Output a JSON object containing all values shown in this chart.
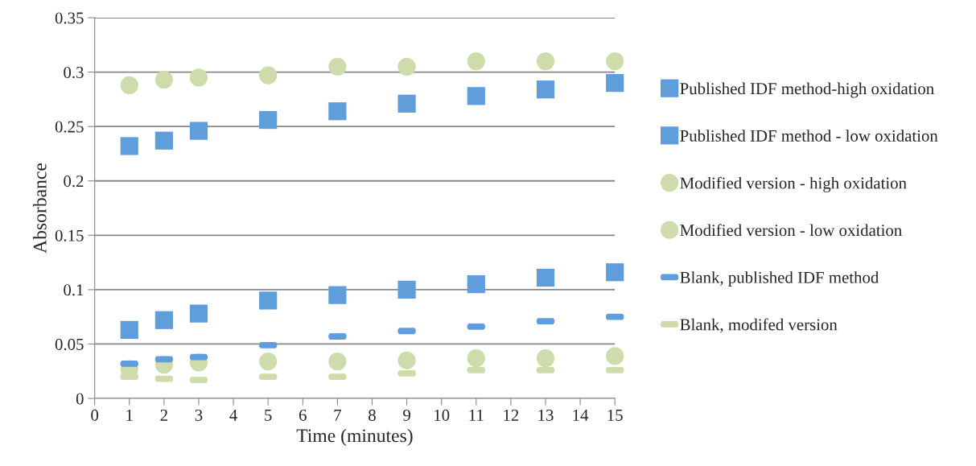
{
  "chart_data": {
    "type": "scatter",
    "xlabel": "Time (minutes)",
    "ylabel": "Absorbance",
    "x": [
      1,
      2,
      3,
      5,
      7,
      9,
      11,
      13,
      15
    ],
    "series": [
      {
        "name": "Published IDF method-high oxidation",
        "color": "#5f9ddb",
        "marker": "square",
        "values": [
          0.232,
          0.237,
          0.246,
          0.256,
          0.264,
          0.271,
          0.278,
          0.284,
          0.29
        ]
      },
      {
        "name": "Published IDF method - low oxidation",
        "color": "#5f9ddb",
        "marker": "square",
        "values": [
          0.063,
          0.072,
          0.078,
          0.09,
          0.095,
          0.1,
          0.105,
          0.111,
          0.116
        ]
      },
      {
        "name": "Modified version - high oxidation",
        "color": "#cddcaa",
        "marker": "circle",
        "values": [
          0.288,
          0.293,
          0.295,
          0.297,
          0.305,
          0.305,
          0.31,
          0.31,
          0.31
        ]
      },
      {
        "name": "Modified version - low oxidation",
        "color": "#cddcaa",
        "marker": "circle",
        "values": [
          0.027,
          0.031,
          0.033,
          0.034,
          0.034,
          0.035,
          0.037,
          0.037,
          0.039
        ]
      },
      {
        "name": "Blank, published IDF method",
        "color": "#5f9ddb",
        "values": [
          0.032,
          0.036,
          0.038,
          0.049,
          0.057,
          0.062,
          0.066,
          0.071,
          0.075
        ]
      },
      {
        "name": "Blank, modifed version",
        "color": "#cddcaa",
        "values": [
          0.02,
          0.018,
          0.017,
          0.02,
          0.02,
          0.023,
          0.026,
          0.026,
          0.026
        ]
      }
    ],
    "xlim": [
      0,
      15
    ],
    "xticks": [
      0,
      1,
      2,
      3,
      4,
      5,
      6,
      7,
      8,
      9,
      10,
      11,
      12,
      13,
      14,
      15
    ],
    "ylim": [
      0,
      0.35
    ],
    "yticks": [
      {
        "value": 0,
        "label": "0"
      },
      {
        "value": 0.05,
        "label": "0.05"
      },
      {
        "value": 0.1,
        "label": "0.1"
      },
      {
        "value": 0.15,
        "label": "0.15"
      },
      {
        "value": 0.2,
        "label": "0.2"
      },
      {
        "value": 0.25,
        "label": "0.25"
      },
      {
        "value": 0.3,
        "label": "0.3"
      },
      {
        "value": 0.35,
        "label": "0.35"
      }
    ],
    "grid": "y",
    "legend": "right"
  }
}
